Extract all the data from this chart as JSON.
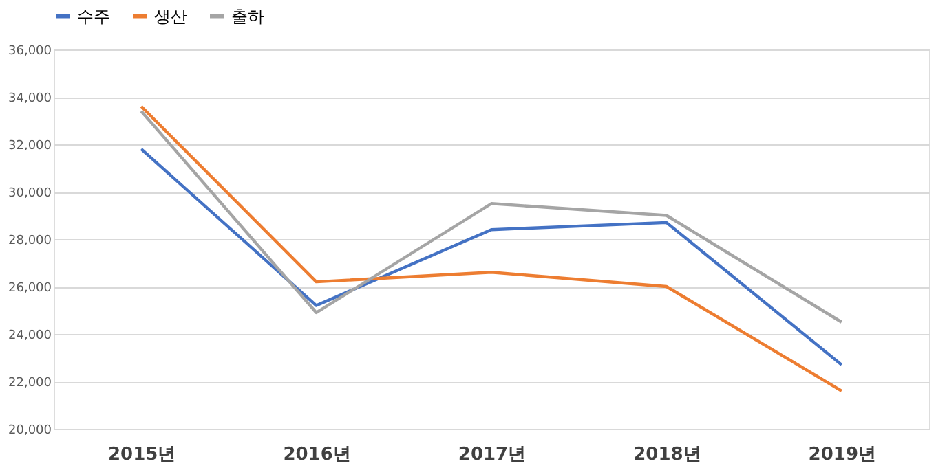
{
  "chart_data": {
    "type": "line",
    "categories": [
      "2015년",
      "2016년",
      "2017년",
      "2018년",
      "2019년"
    ],
    "series": [
      {
        "name": "수주",
        "color": "#4472c4",
        "values": [
          31800,
          25200,
          28400,
          28700,
          22700
        ]
      },
      {
        "name": "생산",
        "color": "#ed7d31",
        "values": [
          33600,
          26200,
          26600,
          26000,
          21600
        ]
      },
      {
        "name": "출하",
        "color": "#a5a5a5",
        "values": [
          33400,
          24900,
          29500,
          29000,
          24500
        ]
      }
    ],
    "ylim": [
      20000,
      36000
    ],
    "yticks": [
      {
        "value": 20000,
        "label": "20,000"
      },
      {
        "value": 22000,
        "label": "22,000"
      },
      {
        "value": 24000,
        "label": "24,000"
      },
      {
        "value": 26000,
        "label": "26,000"
      },
      {
        "value": 28000,
        "label": "28,000"
      },
      {
        "value": 30000,
        "label": "30,000"
      },
      {
        "value": 32000,
        "label": "32,000"
      },
      {
        "value": 34000,
        "label": "34,000"
      },
      {
        "value": 36000,
        "label": "36,000"
      }
    ],
    "grid": "y",
    "legend": "top",
    "marker": "none",
    "line_style": "solid"
  }
}
